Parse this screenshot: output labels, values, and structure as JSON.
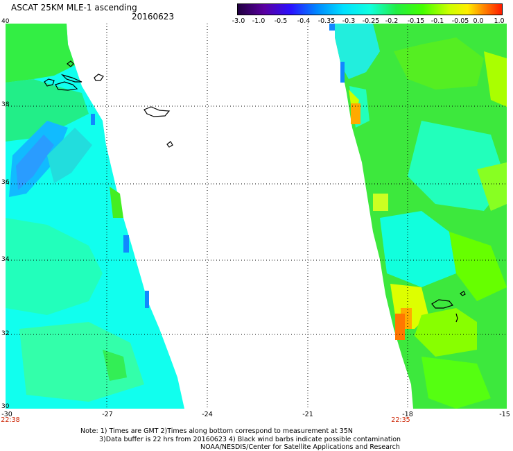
{
  "header": {
    "title": "ASCAT 25KM MLE-1 ascending",
    "date": "20160623"
  },
  "colorbar": {
    "labels": [
      "-3.0",
      "-1.0",
      "-0.5",
      "-0.4",
      "-0.35",
      "-0.3",
      "-0.25",
      "-0.2",
      "-0.15",
      "-0.1",
      "-0.05",
      "0.0",
      "1.0"
    ],
    "colors": [
      "#2a0050",
      "#5a009a",
      "#2200cc",
      "#0044ff",
      "#0099ff",
      "#00ddff",
      "#22ffcc",
      "#22ee22",
      "#88ff00",
      "#ccff00",
      "#ffff00",
      "#ff9900",
      "#ff2200"
    ]
  },
  "map": {
    "lat_labels": [
      "40",
      "38",
      "36",
      "34",
      "32",
      "30"
    ],
    "lon_labels": [
      "-30",
      "-27",
      "-24",
      "-21",
      "-18",
      "-15"
    ],
    "time_labels": [
      "22:38",
      "22:35"
    ],
    "lon_range": [
      -30,
      -15
    ],
    "lat_range": [
      30,
      40
    ]
  },
  "notes": [
    "Note: 1) Times are GMT 2)Times along bottom correspond to measurement at 35N",
    "3)Data buffer is 22 hrs from 20160623 4) Black wind barbs indicate possible contamination",
    "NOAA/NESDIS/Center for Satellite Applications and Research"
  ]
}
